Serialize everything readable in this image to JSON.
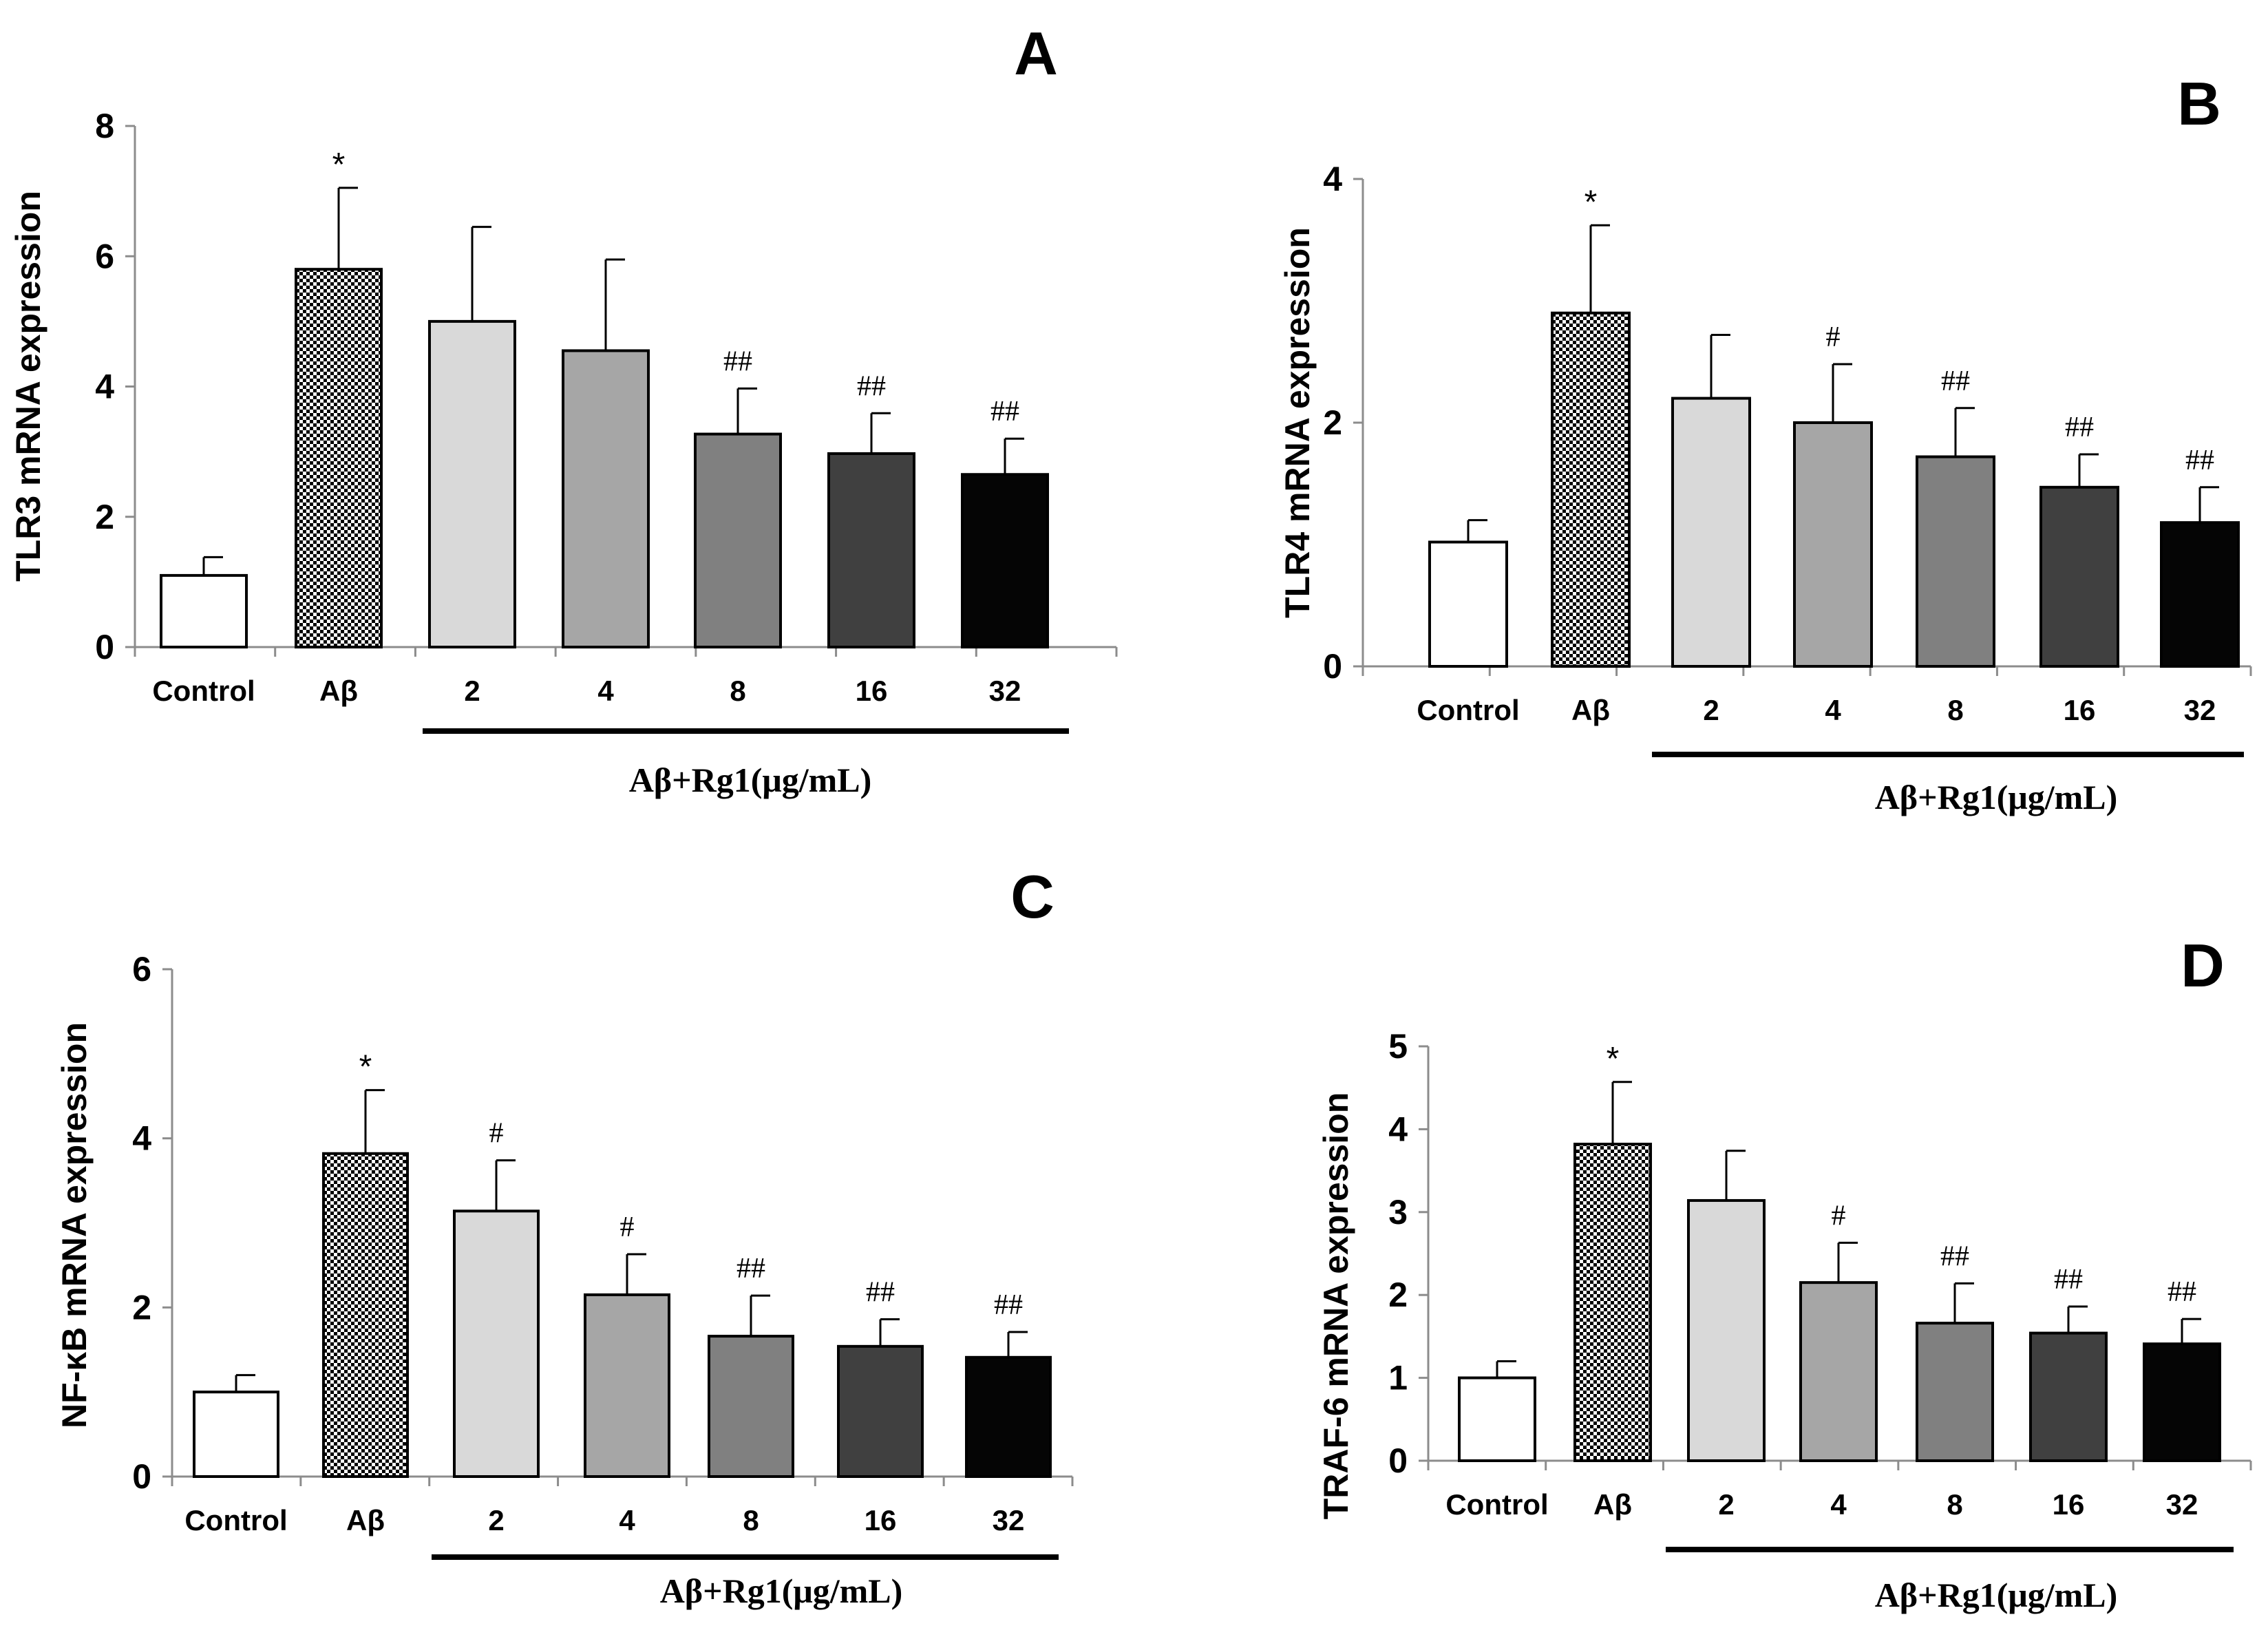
{
  "figure": {
    "group_label": "Aβ+Rg1(μg/mL)"
  },
  "colors": {
    "fills": [
      "#ffffff",
      "pattern",
      "#d9d9d9",
      "#a6a6a6",
      "#808080",
      "#404040",
      "#050505"
    ],
    "axis": "#8c8c8c",
    "bar_outline": "#000000"
  },
  "chart_data": [
    {
      "type": "bar",
      "panel": "A",
      "ylabel": "TLR3 mRNA expression",
      "categories": [
        "Control",
        "Aβ",
        "2",
        "4",
        "8",
        "16",
        "32"
      ],
      "values": [
        1.1,
        5.8,
        5.0,
        4.55,
        3.27,
        2.97,
        2.65
      ],
      "errors": [
        0.28,
        1.25,
        1.45,
        1.4,
        0.7,
        0.62,
        0.55
      ],
      "significance": [
        "",
        "*",
        "",
        "",
        "##",
        "##",
        "##"
      ],
      "ylim": [
        0,
        8
      ],
      "yticks": [
        0,
        2,
        4,
        6,
        8
      ]
    },
    {
      "type": "bar",
      "panel": "B",
      "ylabel": "TLR4 mRNA expression",
      "categories": [
        "Control",
        "Aβ",
        "2",
        "4",
        "8",
        "16",
        "32"
      ],
      "values": [
        1.02,
        2.9,
        2.2,
        2.0,
        1.72,
        1.47,
        1.18
      ],
      "errors": [
        0.18,
        0.72,
        0.52,
        0.48,
        0.4,
        0.27,
        0.29
      ],
      "significance": [
        "",
        "*",
        "",
        "#",
        "##",
        "##",
        "##"
      ],
      "ylim": [
        0,
        4
      ],
      "yticks": [
        0,
        2,
        4
      ]
    },
    {
      "type": "bar",
      "panel": "C",
      "ylabel": "NF-κB mRNA expression",
      "categories": [
        "Control",
        "Aβ",
        "2",
        "4",
        "8",
        "16",
        "32"
      ],
      "values": [
        1.0,
        3.82,
        3.14,
        2.15,
        1.66,
        1.54,
        1.41
      ],
      "errors": [
        0.2,
        0.75,
        0.6,
        0.48,
        0.48,
        0.32,
        0.3
      ],
      "significance": [
        "",
        "*",
        "#",
        "#",
        "##",
        "##",
        "##"
      ],
      "ylim": [
        0,
        6
      ],
      "yticks": [
        0,
        2,
        4,
        6
      ]
    },
    {
      "type": "bar",
      "panel": "D",
      "ylabel": "TRAF-6 mRNA expression",
      "categories": [
        "Control",
        "Aβ",
        "2",
        "4",
        "8",
        "16",
        "32"
      ],
      "values": [
        1.0,
        3.82,
        3.14,
        2.15,
        1.66,
        1.54,
        1.41
      ],
      "errors": [
        0.2,
        0.75,
        0.6,
        0.48,
        0.48,
        0.32,
        0.3
      ],
      "significance": [
        "",
        "*",
        "",
        "#",
        "##",
        "##",
        "##"
      ],
      "ylim": [
        0,
        5
      ],
      "yticks": [
        0,
        1,
        2,
        3,
        4,
        5
      ]
    }
  ]
}
